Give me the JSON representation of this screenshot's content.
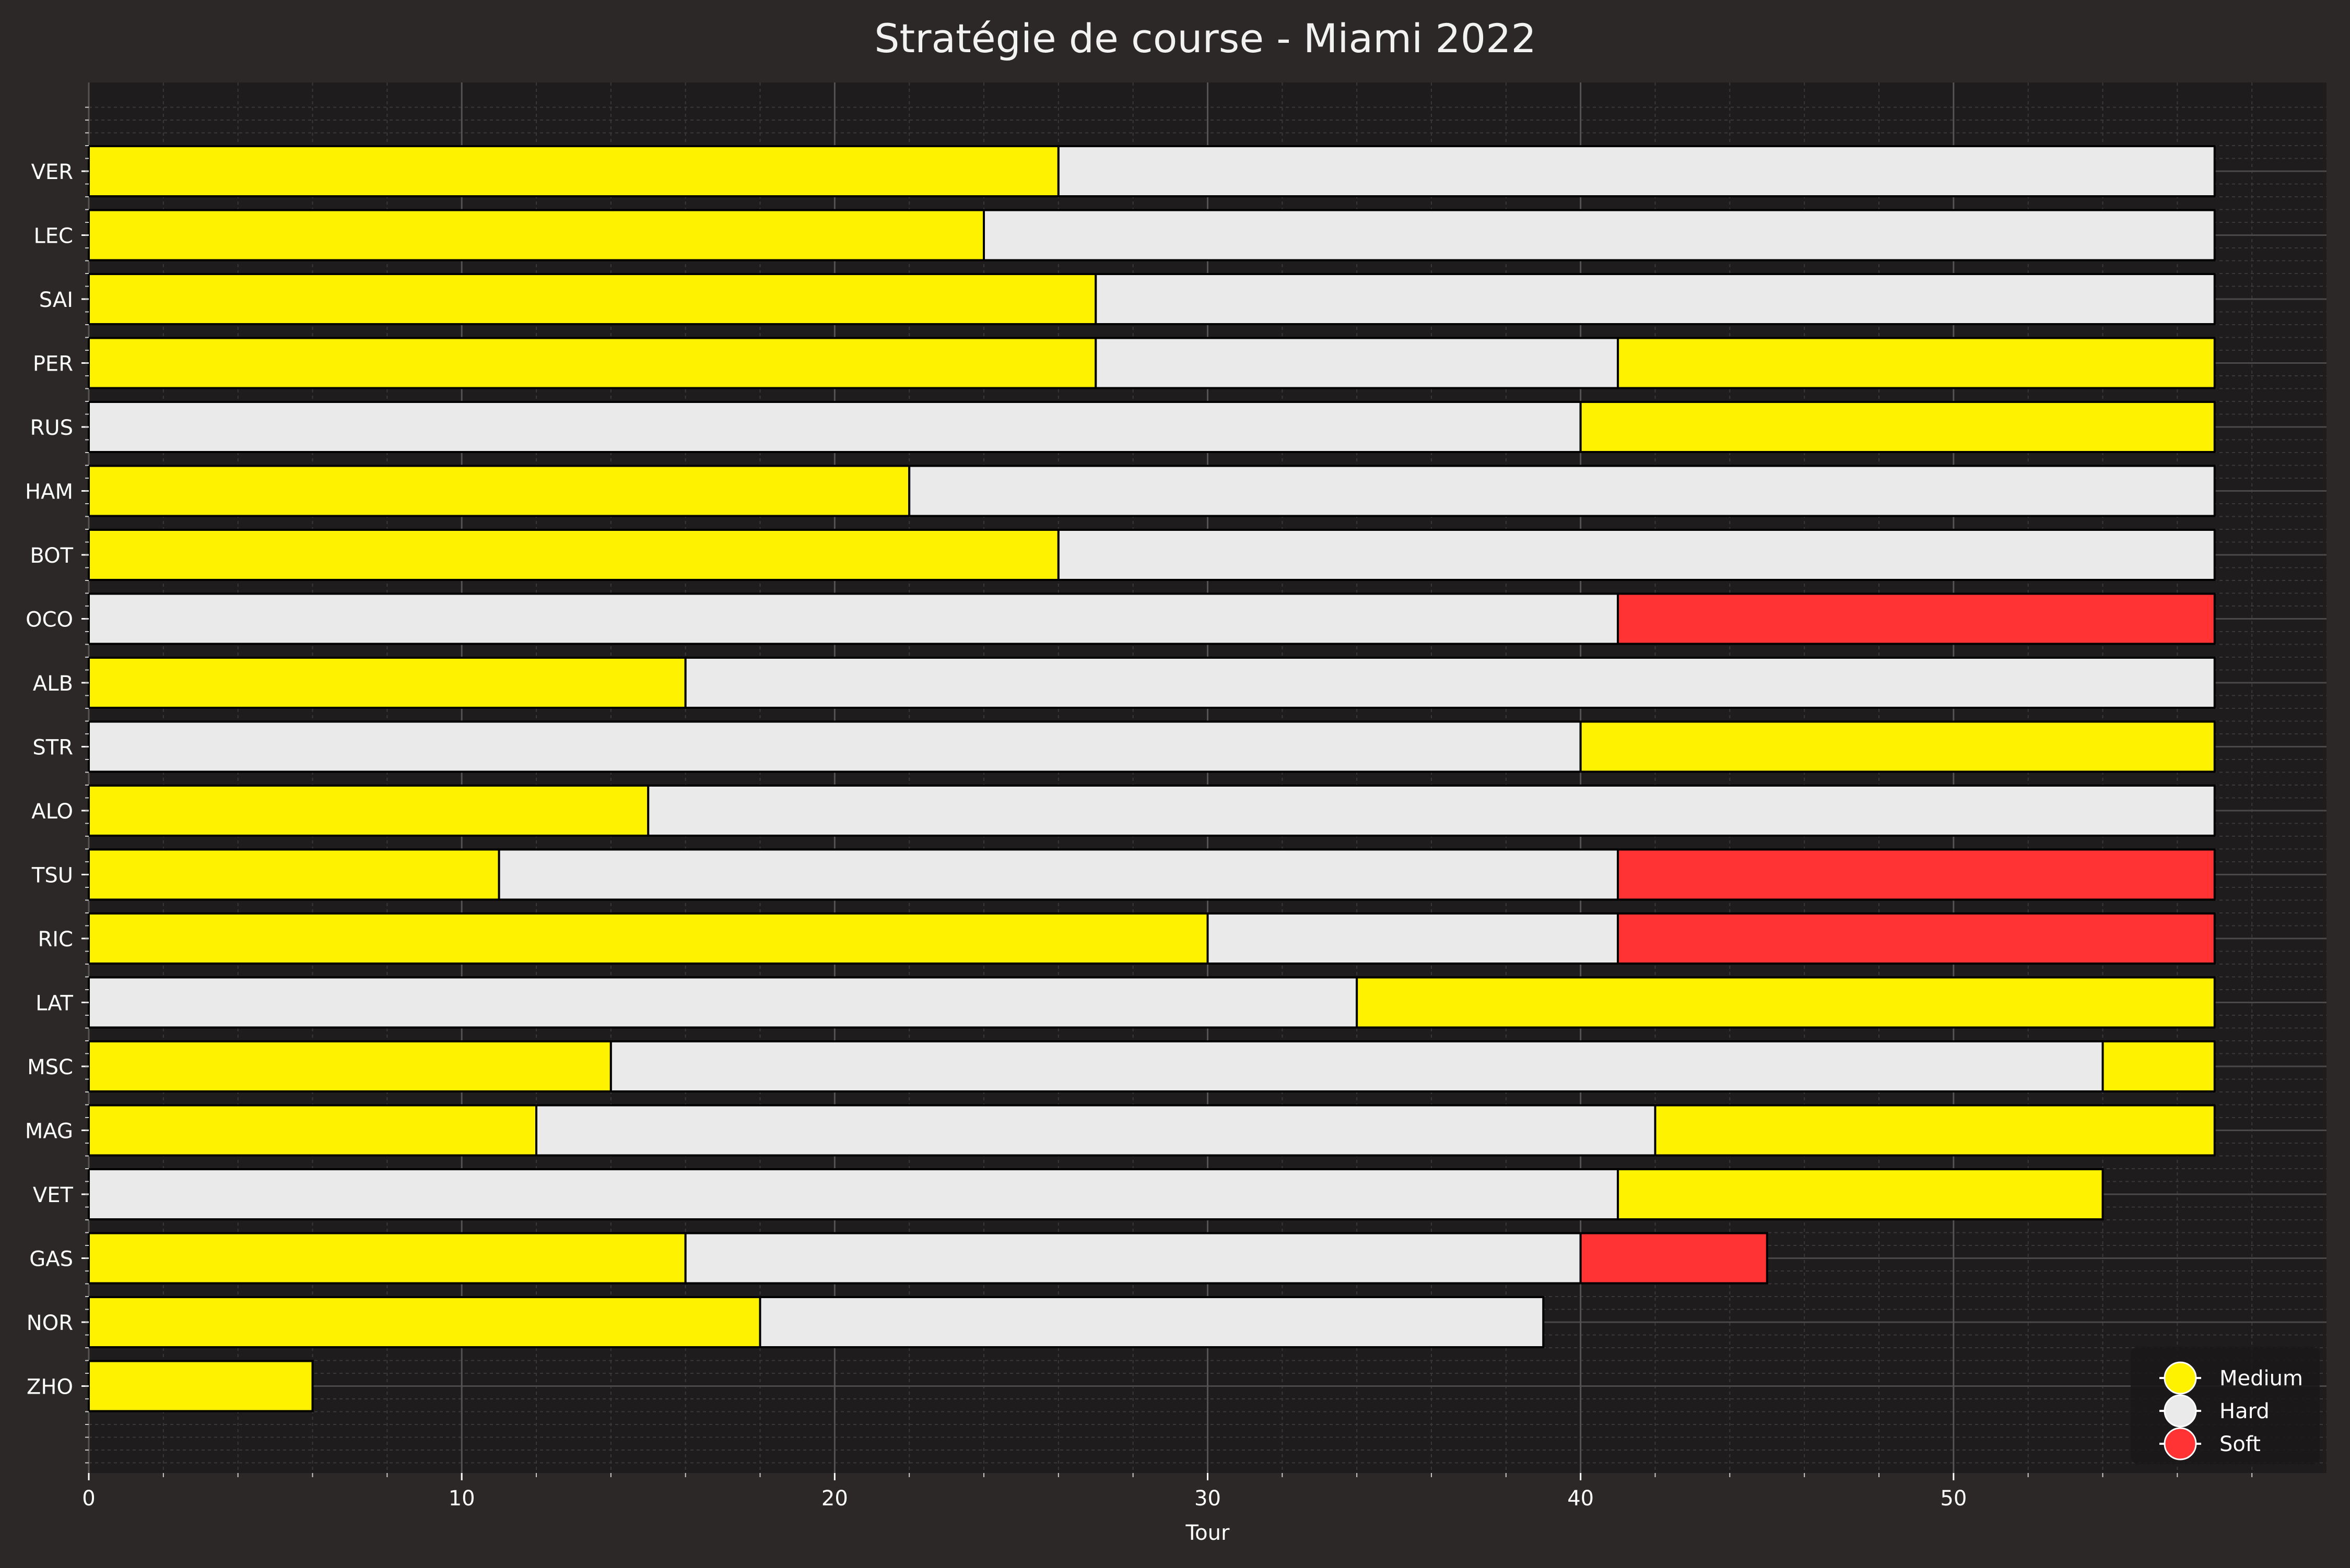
{
  "chart_data": {
    "type": "bar",
    "orientation": "horizontal-stacked",
    "title": "Stratégie de course - Miami 2022",
    "xlabel": "Tour",
    "ylabel": "",
    "xlim": [
      0,
      60
    ],
    "xticks": [
      0,
      10,
      20,
      30,
      40,
      50
    ],
    "grid": true,
    "legend_position": "bottom-right",
    "compound_colors": {
      "Medium": "#fff200",
      "Hard": "#eaeaea",
      "Soft": "#ff3333"
    },
    "legend": [
      "Medium",
      "Hard",
      "Soft"
    ],
    "drivers": [
      {
        "driver": "VER",
        "stints": [
          {
            "compound": "Medium",
            "laps": 26
          },
          {
            "compound": "Hard",
            "laps": 31
          }
        ]
      },
      {
        "driver": "LEC",
        "stints": [
          {
            "compound": "Medium",
            "laps": 24
          },
          {
            "compound": "Hard",
            "laps": 33
          }
        ]
      },
      {
        "driver": "SAI",
        "stints": [
          {
            "compound": "Medium",
            "laps": 27
          },
          {
            "compound": "Hard",
            "laps": 30
          }
        ]
      },
      {
        "driver": "PER",
        "stints": [
          {
            "compound": "Medium",
            "laps": 27
          },
          {
            "compound": "Hard",
            "laps": 14
          },
          {
            "compound": "Medium",
            "laps": 16
          }
        ]
      },
      {
        "driver": "RUS",
        "stints": [
          {
            "compound": "Hard",
            "laps": 40
          },
          {
            "compound": "Medium",
            "laps": 17
          }
        ]
      },
      {
        "driver": "HAM",
        "stints": [
          {
            "compound": "Medium",
            "laps": 22
          },
          {
            "compound": "Hard",
            "laps": 35
          }
        ]
      },
      {
        "driver": "BOT",
        "stints": [
          {
            "compound": "Medium",
            "laps": 26
          },
          {
            "compound": "Hard",
            "laps": 31
          }
        ]
      },
      {
        "driver": "OCO",
        "stints": [
          {
            "compound": "Hard",
            "laps": 41
          },
          {
            "compound": "Soft",
            "laps": 16
          }
        ]
      },
      {
        "driver": "ALB",
        "stints": [
          {
            "compound": "Medium",
            "laps": 16
          },
          {
            "compound": "Hard",
            "laps": 41
          }
        ]
      },
      {
        "driver": "STR",
        "stints": [
          {
            "compound": "Hard",
            "laps": 40
          },
          {
            "compound": "Medium",
            "laps": 17
          }
        ]
      },
      {
        "driver": "ALO",
        "stints": [
          {
            "compound": "Medium",
            "laps": 15
          },
          {
            "compound": "Hard",
            "laps": 42
          }
        ]
      },
      {
        "driver": "TSU",
        "stints": [
          {
            "compound": "Medium",
            "laps": 11
          },
          {
            "compound": "Hard",
            "laps": 30
          },
          {
            "compound": "Soft",
            "laps": 16
          }
        ]
      },
      {
        "driver": "RIC",
        "stints": [
          {
            "compound": "Medium",
            "laps": 30
          },
          {
            "compound": "Hard",
            "laps": 11
          },
          {
            "compound": "Soft",
            "laps": 16
          }
        ]
      },
      {
        "driver": "LAT",
        "stints": [
          {
            "compound": "Hard",
            "laps": 34
          },
          {
            "compound": "Medium",
            "laps": 23
          }
        ]
      },
      {
        "driver": "MSC",
        "stints": [
          {
            "compound": "Medium",
            "laps": 14
          },
          {
            "compound": "Hard",
            "laps": 40
          },
          {
            "compound": "Medium",
            "laps": 3
          }
        ]
      },
      {
        "driver": "MAG",
        "stints": [
          {
            "compound": "Medium",
            "laps": 12
          },
          {
            "compound": "Hard",
            "laps": 30
          },
          {
            "compound": "Medium",
            "laps": 15
          }
        ]
      },
      {
        "driver": "VET",
        "stints": [
          {
            "compound": "Hard",
            "laps": 41
          },
          {
            "compound": "Medium",
            "laps": 13
          }
        ]
      },
      {
        "driver": "GAS",
        "stints": [
          {
            "compound": "Medium",
            "laps": 16
          },
          {
            "compound": "Hard",
            "laps": 24
          },
          {
            "compound": "Soft",
            "laps": 5
          }
        ]
      },
      {
        "driver": "NOR",
        "stints": [
          {
            "compound": "Medium",
            "laps": 18
          },
          {
            "compound": "Hard",
            "laps": 21
          }
        ]
      },
      {
        "driver": "ZHO",
        "stints": [
          {
            "compound": "Medium",
            "laps": 6
          }
        ]
      }
    ]
  }
}
